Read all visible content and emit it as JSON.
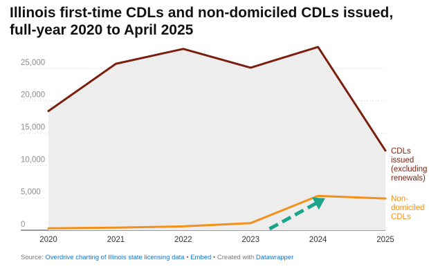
{
  "title": "Illinois first-time CDLs and non-domiciled CDLs issued, full-year 2020 to April 2025",
  "source": {
    "prefix": "Source: ",
    "source_link": "Overdrive charting of Illinois state licensing data",
    "sep1": " • ",
    "embed": "Embed",
    "sep2": " • Created with ",
    "tool": "Datawrapper"
  },
  "chart_data": {
    "type": "line",
    "x": [
      "2020",
      "2021",
      "2022",
      "2023",
      "2024",
      "2025"
    ],
    "series": [
      {
        "name": "CDLs issued (excluding renewals)",
        "label_lines": [
          "CDLs",
          "issued",
          "(excluding",
          "renewals)"
        ],
        "values": [
          18400,
          25700,
          28000,
          25100,
          28300,
          12300
        ],
        "color": "#7a1e0e",
        "area_fill": "#ededed"
      },
      {
        "name": "Non-domiciled CDLs",
        "label_lines": [
          "Non-",
          "domiciled",
          "CDLs"
        ],
        "values": [
          300,
          400,
          600,
          1100,
          5300,
          4900
        ],
        "color": "#f39019"
      }
    ],
    "yticks": [
      0,
      5000,
      10000,
      15000,
      20000,
      25000
    ],
    "ytick_labels": [
      "0",
      "5,000",
      "10,000",
      "15,000",
      "20,000",
      "25,000"
    ],
    "ylim": [
      0,
      30000
    ],
    "grid": true,
    "annotation": {
      "type": "arrow",
      "color": "#1aa58a",
      "direction": "up-right",
      "from": [
        "2023",
        0
      ],
      "to": [
        "2024",
        3000
      ]
    }
  }
}
